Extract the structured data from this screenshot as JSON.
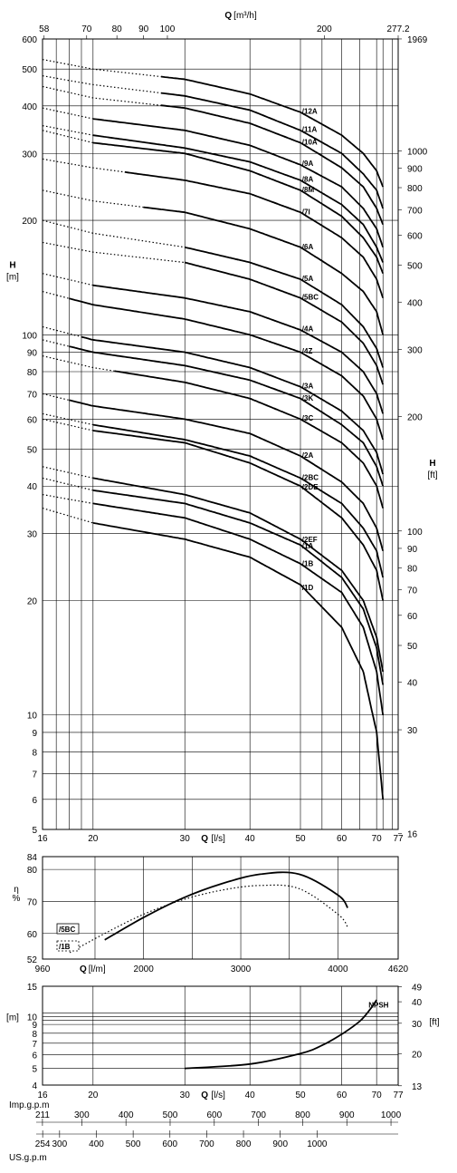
{
  "chart_data": [
    {
      "type": "line",
      "panel": "head",
      "axes": {
        "x_bottom": {
          "label": "Q",
          "unit": "[l/s]",
          "scale": "log",
          "ticks": [
            "16",
            "20",
            "30",
            "40",
            "50",
            "60",
            "70",
            "77"
          ]
        },
        "x_top": {
          "label": "Q",
          "unit": "[m³/h]",
          "ticks": [
            "58",
            "70",
            "80",
            "90",
            "100",
            "200",
            "277.2"
          ]
        },
        "y_left": {
          "label": "H",
          "unit": "[m]",
          "scale": "log",
          "range": [
            5,
            600
          ],
          "ticks": [
            "5",
            "6",
            "7",
            "8",
            "9",
            "10",
            "20",
            "30",
            "40",
            "50",
            "60",
            "70",
            "80",
            "90",
            "100",
            "200",
            "300",
            "400",
            "500",
            "600"
          ]
        },
        "y_right": {
          "label": "H",
          "unit": "[ft]",
          "ticks": [
            "16",
            "30",
            "40",
            "50",
            "60",
            "70",
            "80",
            "90",
            "100",
            "200",
            "300",
            "400",
            "500",
            "600",
            "700",
            "800",
            "900",
            "1000",
            "1969"
          ]
        }
      },
      "series": [
        {
          "name": "/12A",
          "x": [
            16,
            20,
            30,
            40,
            50,
            60,
            66,
            70,
            72
          ],
          "y": [
            530,
            500,
            470,
            430,
            385,
            335,
            300,
            270,
            245
          ],
          "dotted_until": 27
        },
        {
          "name": "/11A",
          "x": [
            16,
            20,
            30,
            40,
            50,
            60,
            66,
            70,
            72
          ],
          "y": [
            480,
            455,
            425,
            390,
            345,
            300,
            265,
            240,
            215
          ],
          "dotted_until": 27
        },
        {
          "name": "/10A",
          "x": [
            16,
            20,
            30,
            40,
            50,
            60,
            66,
            70,
            72
          ],
          "y": [
            450,
            420,
            395,
            360,
            320,
            275,
            245,
            215,
            195
          ],
          "dotted_until": 27
        },
        {
          "name": "/9A",
          "x": [
            16,
            20,
            30,
            40,
            50,
            60,
            66,
            70,
            72
          ],
          "y": [
            395,
            370,
            345,
            315,
            280,
            245,
            215,
            190,
            170
          ],
          "dotted_until": 20
        },
        {
          "name": "/8A",
          "x": [
            16,
            20,
            30,
            40,
            50,
            60,
            66,
            70,
            72
          ],
          "y": [
            355,
            335,
            310,
            285,
            255,
            220,
            195,
            170,
            155
          ],
          "dotted_until": 20
        },
        {
          "name": "/8M",
          "x": [
            16,
            20,
            30,
            40,
            50,
            60,
            66,
            70,
            72
          ],
          "y": [
            345,
            320,
            300,
            270,
            240,
            205,
            180,
            160,
            145
          ],
          "dotted_until": 20
        },
        {
          "name": "/7I",
          "x": [
            16,
            20,
            30,
            40,
            50,
            60,
            66,
            70,
            72
          ],
          "y": [
            290,
            275,
            255,
            235,
            210,
            180,
            160,
            140,
            125
          ],
          "dotted_until": 23
        },
        {
          "name": "/6A",
          "x": [
            16,
            20,
            30,
            40,
            50,
            60,
            66,
            70,
            72
          ],
          "y": [
            240,
            225,
            210,
            190,
            170,
            145,
            130,
            115,
            100
          ],
          "dotted_until": 25
        },
        {
          "name": "/5A",
          "x": [
            16,
            20,
            30,
            40,
            50,
            60,
            66,
            70,
            72
          ],
          "y": [
            200,
            185,
            170,
            155,
            140,
            120,
            105,
            92,
            82
          ],
          "dotted_until": 30
        },
        {
          "name": "/5BC",
          "x": [
            16,
            20,
            30,
            40,
            50,
            60,
            66,
            70,
            72
          ],
          "y": [
            175,
            165,
            155,
            140,
            125,
            108,
            95,
            83,
            74
          ],
          "dotted_until": 30
        },
        {
          "name": "/4A",
          "x": [
            16,
            20,
            30,
            40,
            50,
            60,
            66,
            70,
            72
          ],
          "y": [
            145,
            135,
            125,
            115,
            103,
            90,
            80,
            70,
            62
          ],
          "dotted_until": 20
        },
        {
          "name": "/4Z",
          "x": [
            16,
            20,
            30,
            40,
            50,
            60,
            66,
            70,
            72
          ],
          "y": [
            130,
            120,
            110,
            100,
            90,
            78,
            69,
            60,
            53
          ],
          "dotted_until": 18
        },
        {
          "name": "/3A",
          "x": [
            16,
            20,
            30,
            40,
            50,
            60,
            66,
            70,
            72
          ],
          "y": [
            105,
            97,
            90,
            82,
            73,
            63,
            56,
            49,
            43
          ],
          "dotted_until": 19
        },
        {
          "name": "/3K",
          "x": [
            16,
            20,
            30,
            40,
            50,
            60,
            66,
            70,
            72
          ],
          "y": [
            97,
            90,
            83,
            76,
            68,
            58,
            52,
            45,
            40
          ],
          "dotted_until": 18
        },
        {
          "name": "/3C",
          "x": [
            16,
            20,
            30,
            40,
            50,
            60,
            66,
            70,
            72
          ],
          "y": [
            88,
            82,
            75,
            68,
            60,
            52,
            46,
            40,
            35
          ],
          "dotted_until": 22
        },
        {
          "name": "/2A",
          "x": [
            16,
            20,
            30,
            40,
            50,
            60,
            66,
            70,
            72
          ],
          "y": [
            70,
            65,
            60,
            55,
            48,
            41,
            36,
            31,
            27
          ],
          "dotted_until": 18
        },
        {
          "name": "/2BC",
          "x": [
            16,
            20,
            30,
            40,
            50,
            60,
            66,
            70,
            72
          ],
          "y": [
            62,
            58,
            53,
            48,
            42,
            36,
            31,
            27,
            23
          ],
          "dotted_until": 20
        },
        {
          "name": "/2DE",
          "x": [
            16,
            20,
            30,
            40,
            50,
            60,
            66,
            70,
            72
          ],
          "y": [
            60,
            56,
            52,
            46,
            40,
            33,
            28,
            24,
            20
          ],
          "dotted_until": 20
        },
        {
          "name": "/2EF",
          "x": [
            16,
            20,
            30,
            40,
            50,
            60,
            66,
            70,
            72
          ],
          "y": [
            45,
            42,
            38,
            34,
            29,
            24,
            20,
            16,
            13
          ],
          "dotted_until": 20
        },
        {
          "name": "/1A",
          "x": [
            16,
            20,
            30,
            40,
            50,
            60,
            66,
            70,
            72
          ],
          "y": [
            42,
            39,
            36,
            32,
            28,
            23,
            19,
            15,
            12
          ],
          "dotted_until": 20
        },
        {
          "name": "/1B",
          "x": [
            16,
            20,
            30,
            40,
            50,
            60,
            66,
            70,
            72
          ],
          "y": [
            38,
            36,
            33,
            29,
            25,
            21,
            17,
            13,
            10
          ],
          "dotted_until": 20
        },
        {
          "name": "/1D",
          "x": [
            16,
            20,
            30,
            40,
            50,
            60,
            66,
            70,
            72
          ],
          "y": [
            35,
            32,
            29,
            26,
            22,
            17,
            13,
            9,
            6
          ],
          "dotted_until": 20
        }
      ]
    },
    {
      "type": "line",
      "panel": "efficiency",
      "axes": {
        "x": {
          "label": "Q",
          "unit": "[l/m]",
          "ticks": [
            "960",
            "2000",
            "3000",
            "4000",
            "4620"
          ],
          "range": [
            960,
            4620
          ]
        },
        "y": {
          "label": "η",
          "unit": "%",
          "ticks": [
            "52",
            "60",
            "70",
            "80",
            "84"
          ],
          "range": [
            52,
            84
          ]
        }
      },
      "series": [
        {
          "name": "/5BC",
          "style": "solid",
          "x": [
            1600,
            2000,
            2400,
            2800,
            3200,
            3600,
            4000,
            4100
          ],
          "y": [
            58,
            65,
            71,
            75.5,
            78.5,
            78.5,
            72,
            68
          ]
        },
        {
          "name": "/1B",
          "style": "dotted",
          "x": [
            1240,
            1600,
            2000,
            2400,
            2800,
            3200,
            3600,
            4000,
            4100
          ],
          "y": [
            54,
            60,
            66,
            70.5,
            73.5,
            75,
            74,
            66,
            62
          ]
        }
      ]
    },
    {
      "type": "line",
      "panel": "npsh",
      "axes": {
        "x": {
          "label": "Q",
          "unit": "[l/s]",
          "ticks": [
            "16",
            "20",
            "30",
            "40",
            "50",
            "60",
            "70",
            "77"
          ]
        },
        "y_left": {
          "unit": "[m]",
          "ticks": [
            "4",
            "5",
            "6",
            "7",
            "8",
            "9",
            "10",
            "15"
          ],
          "range": [
            4,
            15
          ]
        },
        "y_right": {
          "unit": "[ft]",
          "ticks": [
            "13",
            "20",
            "30",
            "40",
            "49"
          ]
        }
      },
      "series": [
        {
          "name": "NPSH",
          "x": [
            30,
            40,
            50,
            55,
            60,
            65,
            68,
            70
          ],
          "y": [
            5,
            5.3,
            6.1,
            6.8,
            7.9,
            9.4,
            11.0,
            12.5
          ]
        }
      ]
    }
  ],
  "unit_scales": {
    "imp_label": "Imp.g.p.m",
    "imp_ticks": [
      "211",
      "300",
      "400",
      "500",
      "600",
      "700",
      "800",
      "900",
      "1000"
    ],
    "us_label": "US.g.p.m",
    "us_ticks": [
      "254",
      "300",
      "400",
      "500",
      "600",
      "700",
      "800",
      "900",
      "1000"
    ]
  }
}
